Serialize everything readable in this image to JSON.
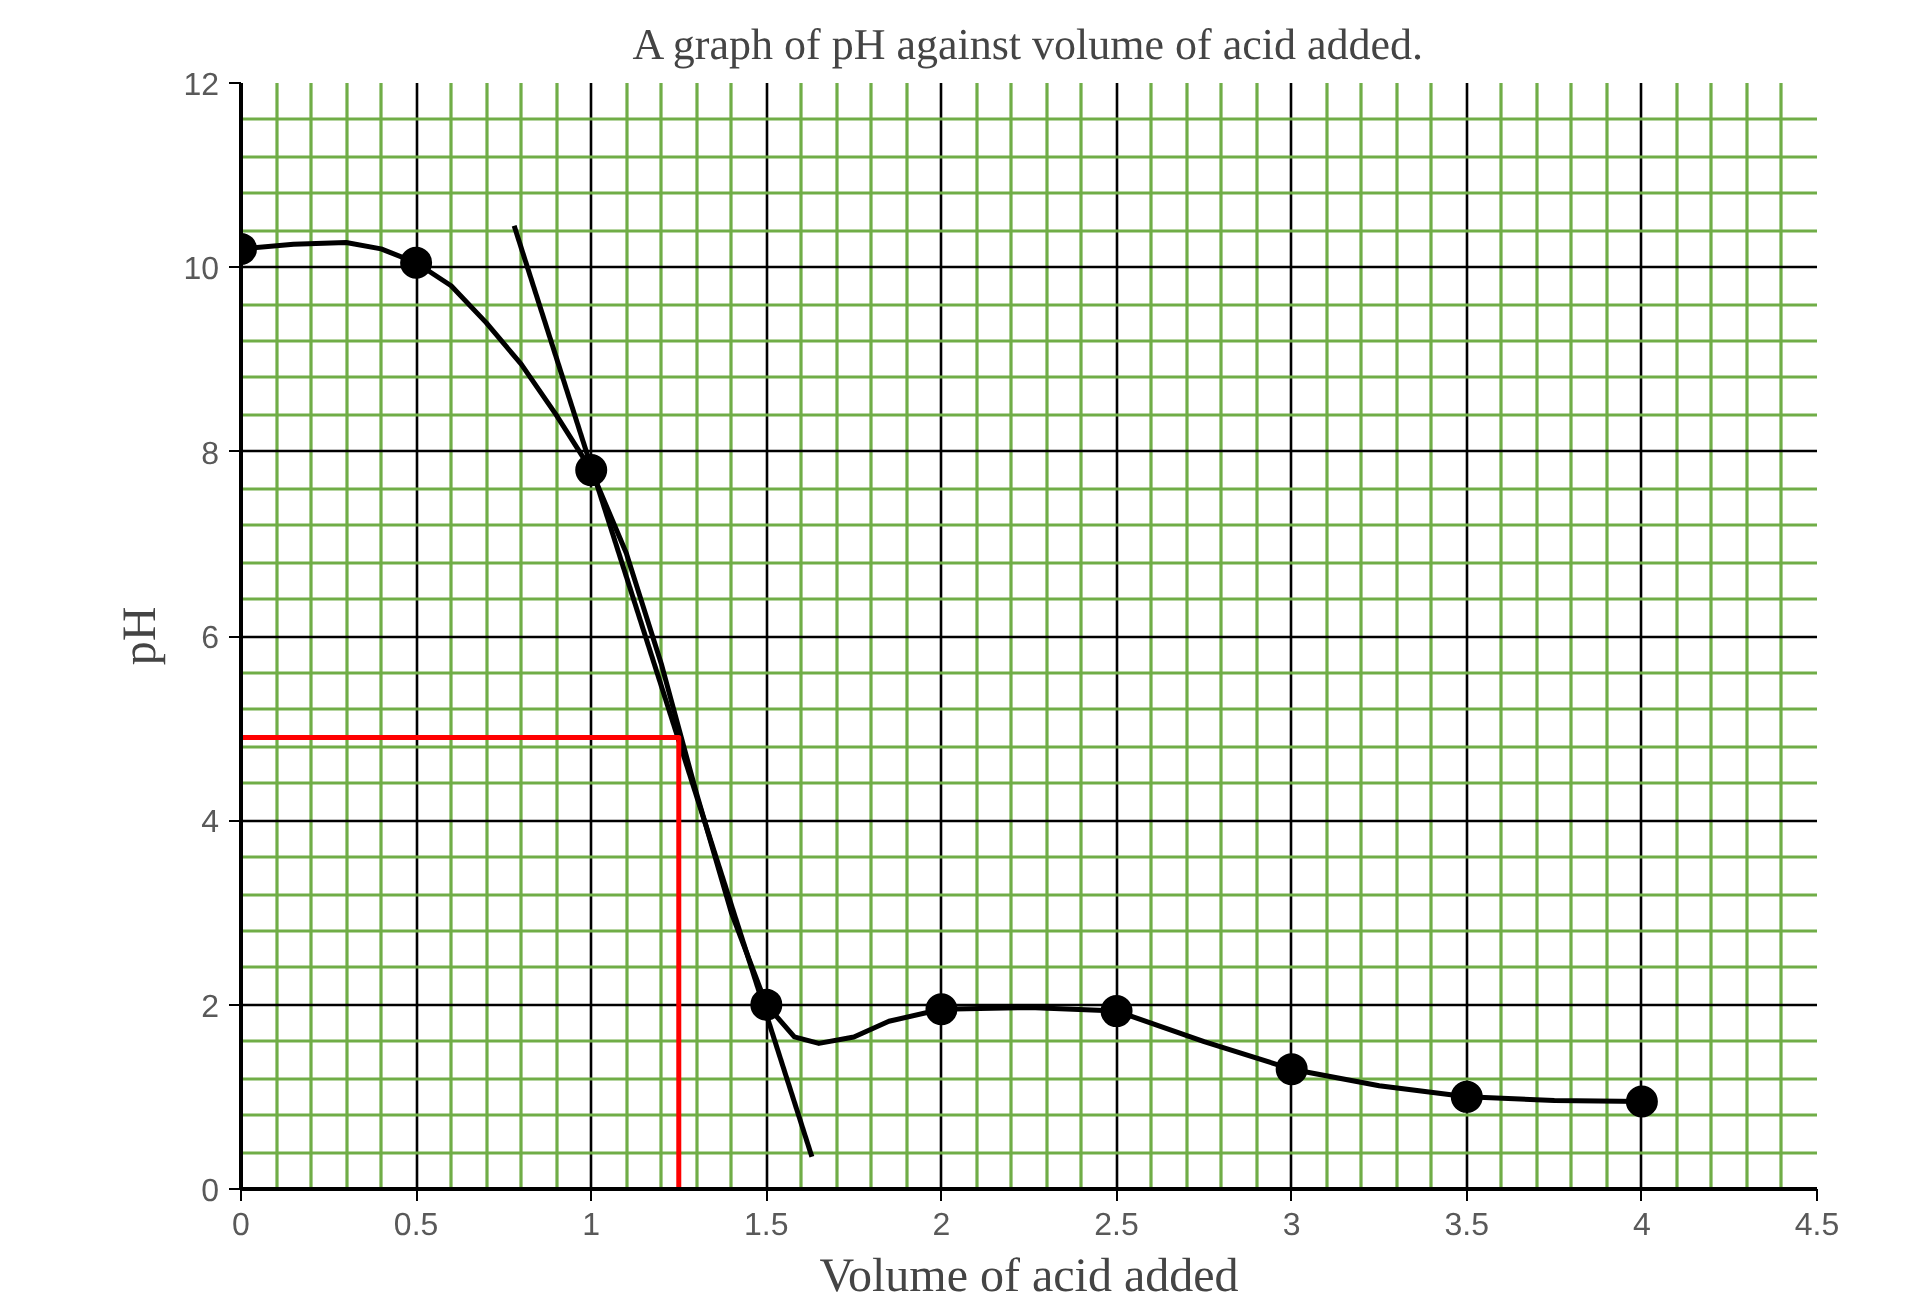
{
  "chart_data": {
    "type": "line",
    "title": "A graph of pH against volume of acid added.",
    "xlabel": "Volume of acid added",
    "ylabel": "pH",
    "xlim": [
      0,
      4.5
    ],
    "xticks": [
      0,
      {
        "value": 0.1,
        "label": null
      },
      {
        "value": 0.2,
        "label": null
      },
      {
        "value": 0.3,
        "label": null
      },
      {
        "value": 0.4,
        "label": null
      },
      0.5,
      {
        "value": 0.6,
        "label": null
      },
      {
        "value": 0.7,
        "label": null
      },
      {
        "value": 0.8,
        "label": null
      },
      {
        "value": 0.9,
        "label": null
      },
      1,
      {
        "value": 1.1,
        "label": null
      },
      {
        "value": 1.2,
        "label": null
      },
      {
        "value": 1.3,
        "label": null
      },
      {
        "value": 1.4,
        "label": null
      },
      1.5,
      {
        "value": 1.6,
        "label": null
      },
      {
        "value": 1.7,
        "label": null
      },
      {
        "value": 1.8,
        "label": null
      },
      {
        "value": 1.9,
        "label": null
      },
      2,
      {
        "value": 2.1,
        "label": null
      },
      {
        "value": 2.2,
        "label": null
      },
      {
        "value": 2.3,
        "label": null
      },
      {
        "value": 2.4,
        "label": null
      },
      2.5,
      {
        "value": 2.6,
        "label": null
      },
      {
        "value": 2.7,
        "label": null
      },
      {
        "value": 2.8,
        "label": null
      },
      {
        "value": 2.9,
        "label": null
      },
      3,
      {
        "value": 3.1,
        "label": null
      },
      {
        "value": 3.2,
        "label": null
      },
      {
        "value": 3.3,
        "label": null
      },
      {
        "value": 3.4,
        "label": null
      },
      3.5,
      {
        "value": 3.6,
        "label": null
      },
      {
        "value": 3.7,
        "label": null
      },
      {
        "value": 3.8,
        "label": null
      },
      {
        "value": 3.9,
        "label": null
      },
      4,
      {
        "value": 4.1,
        "label": null
      },
      {
        "value": 4.2,
        "label": null
      },
      {
        "value": 4.3,
        "label": null
      },
      {
        "value": 4.4,
        "label": null
      },
      4.5
    ],
    "ylim": [
      0,
      12
    ],
    "yticks": [
      0,
      {
        "value": 0.4,
        "label": null
      },
      {
        "value": 0.8,
        "label": null
      },
      {
        "value": 1.2,
        "label": null
      },
      {
        "value": 1.6,
        "label": null
      },
      2,
      {
        "value": 2.4,
        "label": null
      },
      {
        "value": 2.8,
        "label": null
      },
      {
        "value": 3.2,
        "label": null
      },
      {
        "value": 3.6,
        "label": null
      },
      4,
      {
        "value": 4.4,
        "label": null
      },
      {
        "value": 4.8,
        "label": null
      },
      {
        "value": 5.2,
        "label": null
      },
      {
        "value": 5.6,
        "label": null
      },
      6,
      {
        "value": 6.4,
        "label": null
      },
      {
        "value": 6.8,
        "label": null
      },
      {
        "value": 7.2,
        "label": null
      },
      {
        "value": 7.6,
        "label": null
      },
      8,
      {
        "value": 8.4,
        "label": null
      },
      {
        "value": 8.8,
        "label": null
      },
      {
        "value": 9.2,
        "label": null
      },
      {
        "value": 9.6,
        "label": null
      },
      10,
      {
        "value": 10.4,
        "label": null
      },
      {
        "value": 10.8,
        "label": null
      },
      {
        "value": 11.2,
        "label": null
      },
      {
        "value": 11.6,
        "label": null
      },
      12
    ],
    "grid": true,
    "series": [
      {
        "x": [
          0,
          0.15,
          0.3,
          0.4,
          0.5,
          0.6,
          0.7,
          0.8,
          0.9,
          1,
          1.1,
          1.2,
          1.3,
          1.4,
          1.5,
          1.58,
          1.65,
          1.75,
          1.85,
          2,
          2.25,
          2.5,
          2.75,
          3,
          3.25,
          3.5,
          3.75,
          4
        ],
        "values": [
          10.2,
          10.25,
          10.27,
          10.2,
          10.05,
          9.8,
          9.4,
          8.95,
          8.4,
          7.8,
          6.9,
          5.7,
          4.3,
          3.0,
          2.0,
          1.65,
          1.58,
          1.65,
          1.82,
          1.95,
          1.97,
          1.93,
          1.6,
          1.3,
          1.12,
          1.0,
          0.96,
          0.95
        ],
        "color": "#000000",
        "marker": "none"
      },
      {
        "type": "scatter",
        "x": [
          0,
          0.5,
          1,
          1.5,
          2,
          2.5,
          3,
          3.5,
          4
        ],
        "values": [
          10.2,
          10.05,
          7.8,
          2.0,
          1.95,
          1.93,
          1.3,
          1.0,
          0.95
        ],
        "color": "#000000",
        "marker": "circle"
      },
      {
        "x": [
          0.78,
          1.63
        ],
        "values": [
          10.45,
          0.35
        ],
        "color": "#000000",
        "marker": "none"
      },
      {
        "x": [
          1.25,
          1.25,
          0
        ],
        "values": [
          0,
          4.9,
          4.9
        ],
        "color": "#ff0000",
        "marker": "none"
      }
    ]
  }
}
